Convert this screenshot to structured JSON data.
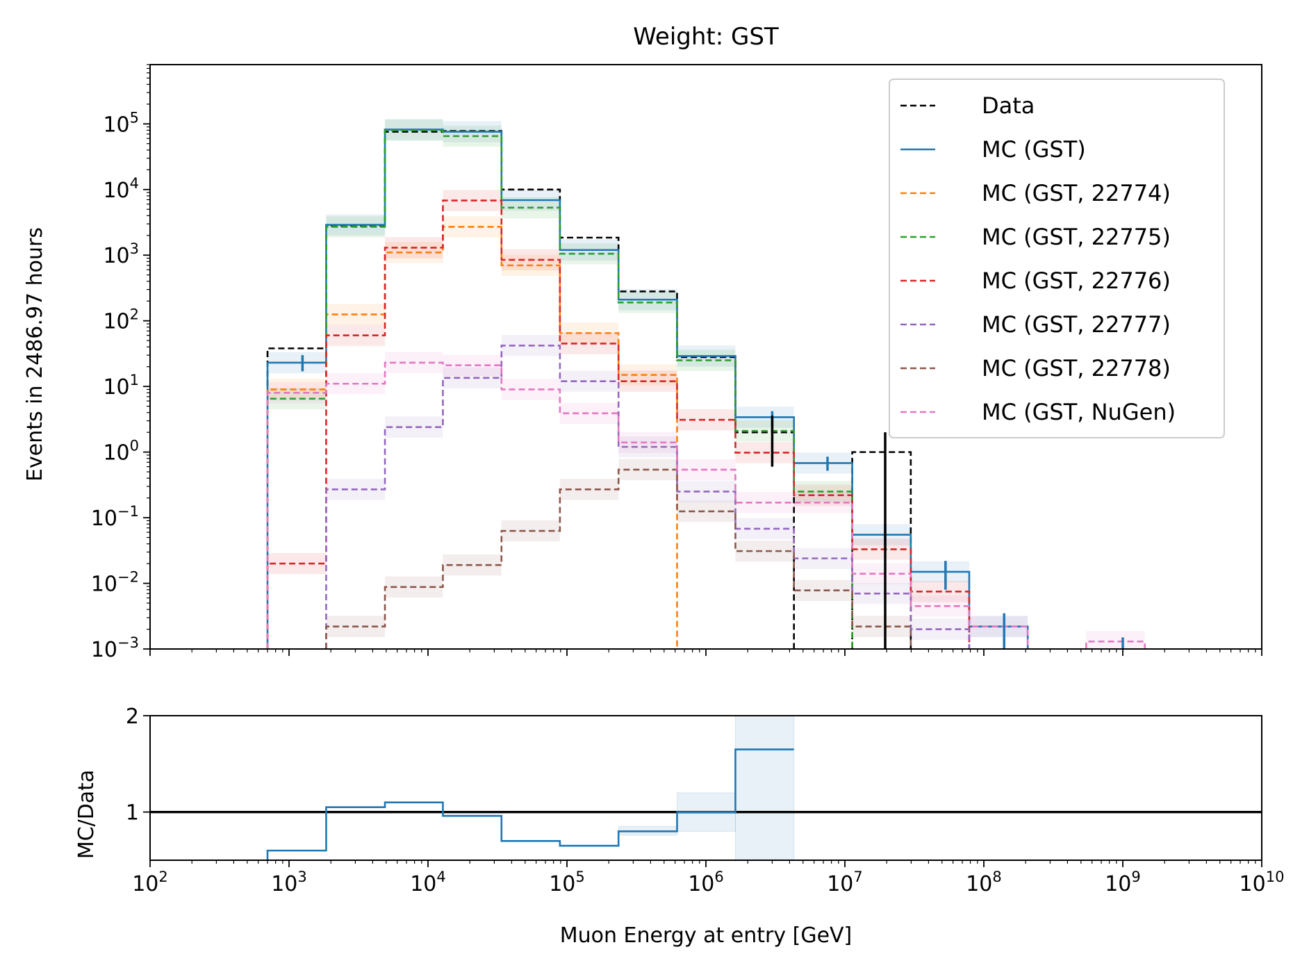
{
  "chart_data": [
    {
      "type": "step-histogram",
      "title": "Weight: GST",
      "ylabel": "Events in 2486.97 hours",
      "xlabel": "",
      "xscale": "log",
      "yscale": "log",
      "xlim": [
        100,
        10000000000
      ],
      "ylim": [
        0.001,
        800000
      ],
      "x_ticks": [
        100,
        1000,
        10000,
        100000,
        1000000,
        10000000,
        100000000,
        1000000000,
        10000000000
      ],
      "y_ticks": [
        {
          "value": 0.001,
          "base": "10",
          "exp": "−3"
        },
        {
          "value": 0.01,
          "base": "10",
          "exp": "−2"
        },
        {
          "value": 0.1,
          "base": "10",
          "exp": "−1"
        },
        {
          "value": 1,
          "base": "10",
          "exp": "0"
        },
        {
          "value": 10,
          "base": "10",
          "exp": "1"
        },
        {
          "value": 100,
          "base": "10",
          "exp": "2"
        },
        {
          "value": 1000,
          "base": "10",
          "exp": "3"
        },
        {
          "value": 10000,
          "base": "10",
          "exp": "4"
        },
        {
          "value": 100000,
          "base": "10",
          "exp": "5"
        }
      ],
      "legend_position": "top-right",
      "bin_edges": [
        700,
        1850,
        4900,
        12800,
        33800,
        89000,
        235000,
        620000,
        1630000,
        4300000,
        11300000,
        29800000,
        78500000,
        207000000,
        545000000,
        1440000000
      ],
      "series": [
        {
          "name": "Data",
          "color": "#000000",
          "dash": true,
          "values": [
            38,
            2800,
            76000,
            78000,
            10000,
            1850,
            280,
            28,
            2.0,
            null,
            1.0,
            null,
            null,
            null,
            null
          ]
        },
        {
          "name": "MC (GST)",
          "color": "#1f77b4",
          "dash": false,
          "values": [
            23,
            2900,
            82000,
            76000,
            6900,
            1200,
            210,
            29,
            3.4,
            0.68,
            0.055,
            0.015,
            0.0022,
            null,
            null
          ]
        },
        {
          "name": "MC (GST, 22774)",
          "color": "#ff7f0e",
          "dash": true,
          "values": [
            9,
            125,
            1100,
            2700,
            700,
            65,
            15,
            null,
            null,
            null,
            null,
            null,
            null,
            null,
            null
          ]
        },
        {
          "name": "MC (GST, 22775)",
          "color": "#2ca02c",
          "dash": true,
          "values": [
            6.5,
            2700,
            80000,
            65000,
            5300,
            1050,
            190,
            25,
            2.1,
            0.25,
            null,
            null,
            null,
            null,
            null
          ]
        },
        {
          "name": "MC (GST, 22776)",
          "color": "#d62728",
          "dash": true,
          "values": [
            0.02,
            60,
            1300,
            6800,
            850,
            45,
            12,
            3.1,
            0.98,
            0.22,
            0.033,
            0.0075,
            null,
            null,
            null
          ]
        },
        {
          "name": "MC (GST, 22777)",
          "color": "#9467bd",
          "dash": true,
          "values": [
            null,
            0.27,
            2.4,
            13.5,
            42,
            12,
            1.2,
            0.25,
            0.068,
            0.024,
            0.007,
            0.002,
            null,
            null,
            null
          ]
        },
        {
          "name": "MC (GST, 22778)",
          "color": "#8c564b",
          "dash": true,
          "values": [
            null,
            0.0022,
            0.0088,
            0.019,
            0.063,
            0.27,
            0.54,
            0.125,
            0.031,
            0.0078,
            0.0022,
            null,
            null,
            null,
            null
          ]
        },
        {
          "name": "MC (GST, NuGen)",
          "color": "#e377c2",
          "dash": true,
          "values": [
            8,
            11,
            23,
            21,
            9,
            3.9,
            1.4,
            0.54,
            0.17,
            0.17,
            0.014,
            0.0045,
            0.0022,
            null,
            0.0013
          ]
        }
      ],
      "error_bars": [
        {
          "series": "MC (GST)",
          "color": "#1f77b4",
          "points": [
            {
              "x": 1250,
              "low": 17,
              "high": 30
            },
            {
              "x": 3000000,
              "low": 2.5,
              "high": 4.2
            },
            {
              "x": 7500000,
              "low": 0.52,
              "high": 0.85
            },
            {
              "x": 19500000,
              "low": 0.035,
              "high": 0.08
            },
            {
              "x": 53000000,
              "low": 0.008,
              "high": 0.022
            },
            {
              "x": 140000000,
              "low": 0.001,
              "high": 0.0035
            },
            {
              "x": 1000000000,
              "low": 0.001,
              "high": 0.0015
            }
          ]
        },
        {
          "series": "Data",
          "color": "#000000",
          "points": [
            {
              "x": 3000000,
              "low": 0.6,
              "high": 3.6
            },
            {
              "x": 19500000,
              "low": 0.001,
              "high": 2.0
            }
          ]
        }
      ]
    },
    {
      "type": "step-ratio",
      "title": "",
      "ylabel": "MC/Data",
      "xlabel": "Muon Energy at entry [GeV]",
      "xscale": "log",
      "xlim": [
        100,
        10000000000
      ],
      "ylim": [
        0.5,
        2
      ],
      "y_ticks": [
        1,
        2
      ],
      "x_ticks": [
        {
          "value": 100,
          "base": "10",
          "exp": "2"
        },
        {
          "value": 1000,
          "base": "10",
          "exp": "3"
        },
        {
          "value": 10000,
          "base": "10",
          "exp": "4"
        },
        {
          "value": 100000,
          "base": "10",
          "exp": "5"
        },
        {
          "value": 1000000,
          "base": "10",
          "exp": "6"
        },
        {
          "value": 10000000,
          "base": "10",
          "exp": "7"
        },
        {
          "value": 100000000,
          "base": "10",
          "exp": "8"
        },
        {
          "value": 1000000000,
          "base": "10",
          "exp": "9"
        },
        {
          "value": 10000000000,
          "base": "10",
          "exp": "10"
        }
      ],
      "reference_line": 1,
      "series": [
        {
          "name": "MC/Data",
          "color": "#1f77b4",
          "values": [
            0.6,
            1.05,
            1.1,
            0.96,
            0.7,
            0.65,
            0.8,
            1.0,
            1.65,
            null,
            null,
            null,
            null,
            null,
            null
          ],
          "band_low": [
            null,
            null,
            null,
            null,
            null,
            null,
            0.76,
            0.8,
            0.5,
            null,
            null,
            null,
            null,
            null,
            null
          ],
          "band_high": [
            null,
            null,
            null,
            null,
            null,
            null,
            0.85,
            1.2,
            2.0,
            null,
            null,
            null,
            null,
            null,
            null
          ]
        }
      ]
    }
  ]
}
